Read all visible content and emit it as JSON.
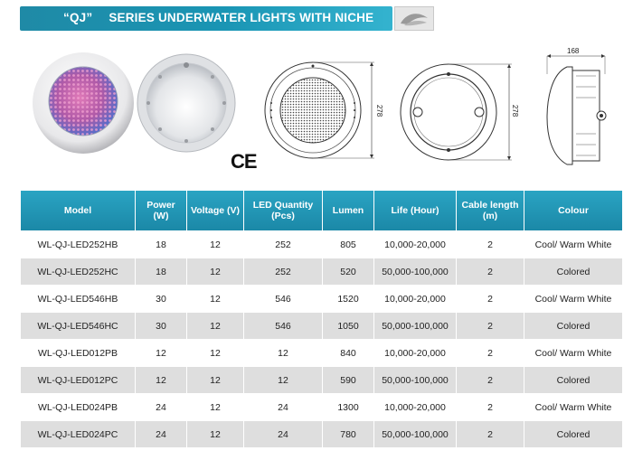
{
  "banner": {
    "series": "“QJ”",
    "title": "SERIES UNDERWATER LIGHTS WITH NICHE"
  },
  "certification": "CE",
  "dimensions": {
    "front_height": "278",
    "back_height": "278",
    "side_width": "168"
  },
  "table": {
    "headers": [
      "Model",
      "Power (W)",
      "Voltage (V)",
      "LED Quantity (Pcs)",
      "Lumen",
      "Life (Hour)",
      "Cable length (m)",
      "Colour"
    ],
    "rows": [
      [
        "WL-QJ-LED252HB",
        "18",
        "12",
        "252",
        "805",
        "10,000-20,000",
        "2",
        "Cool/ Warm White"
      ],
      [
        "WL-QJ-LED252HC",
        "18",
        "12",
        "252",
        "520",
        "50,000-100,000",
        "2",
        "Colored"
      ],
      [
        "WL-QJ-LED546HB",
        "30",
        "12",
        "546",
        "1520",
        "10,000-20,000",
        "2",
        "Cool/ Warm White"
      ],
      [
        "WL-QJ-LED546HC",
        "30",
        "12",
        "546",
        "1050",
        "50,000-100,000",
        "2",
        "Colored"
      ],
      [
        "WL-QJ-LED012PB",
        "12",
        "12",
        "12",
        "840",
        "10,000-20,000",
        "2",
        "Cool/ Warm White"
      ],
      [
        "WL-QJ-LED012PC",
        "12",
        "12",
        "12",
        "590",
        "50,000-100,000",
        "2",
        "Colored"
      ],
      [
        "WL-QJ-LED024PB",
        "24",
        "12",
        "24",
        "1300",
        "10,000-20,000",
        "2",
        "Cool/ Warm White"
      ],
      [
        "WL-QJ-LED024PC",
        "24",
        "12",
        "24",
        "780",
        "50,000-100,000",
        "2",
        "Colored"
      ]
    ]
  }
}
